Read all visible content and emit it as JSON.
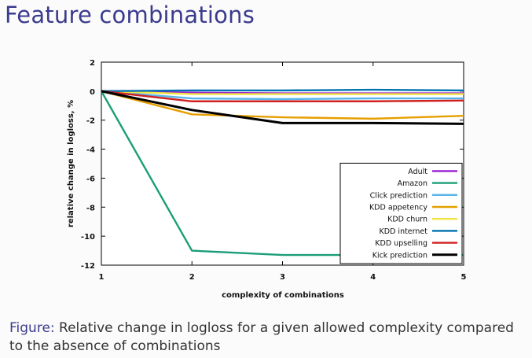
{
  "slide": {
    "title": "Feature combinations"
  },
  "caption": {
    "label": "Figure:",
    "text": "Relative change in logloss for a given allowed complexity compared to the absence of combinations"
  },
  "chart_data": {
    "type": "line",
    "xlabel": "complexity of combinations",
    "ylabel": "relative change in logloss, %",
    "x": [
      1,
      2,
      3,
      4,
      5
    ],
    "xlim": [
      1,
      5
    ],
    "ylim": [
      -12,
      2
    ],
    "xticks": [
      "1",
      "2",
      "3",
      "4",
      "5"
    ],
    "yticks": [
      "2",
      "0",
      "-2",
      "-4",
      "-6",
      "-8",
      "-10",
      "-12"
    ],
    "grid": true,
    "legend_position": "bottom-right",
    "series": [
      {
        "name": "Adult",
        "color": "#9b1fd1",
        "values": [
          0,
          -0.1,
          -0.15,
          -0.15,
          -0.15
        ]
      },
      {
        "name": "Amazon",
        "color": "#1a9e77",
        "values": [
          0,
          -11.0,
          -11.3,
          -11.3,
          -11.3
        ]
      },
      {
        "name": "Click prediction",
        "color": "#56b4e9",
        "values": [
          0,
          -0.5,
          -0.55,
          -0.5,
          -0.5
        ]
      },
      {
        "name": "KDD appetency",
        "color": "#e69f00",
        "values": [
          0,
          -1.6,
          -1.8,
          -1.9,
          -1.7
        ]
      },
      {
        "name": "KDD churn",
        "color": "#f0e442",
        "values": [
          0,
          -0.2,
          -0.2,
          -0.2,
          -0.2
        ]
      },
      {
        "name": "KDD internet",
        "color": "#0072b2",
        "values": [
          0,
          0.05,
          0.05,
          0.1,
          0.05
        ]
      },
      {
        "name": "KDD upselling",
        "color": "#d02020",
        "values": [
          0,
          -0.7,
          -0.7,
          -0.7,
          -0.65
        ]
      },
      {
        "name": "Kick prediction",
        "color": "#000000",
        "values": [
          0,
          -1.3,
          -2.2,
          -2.2,
          -2.25
        ]
      }
    ]
  }
}
